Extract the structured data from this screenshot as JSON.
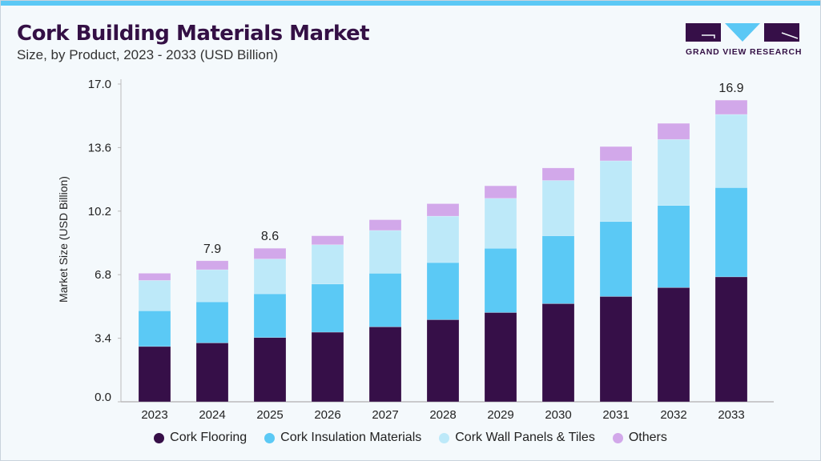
{
  "header": {
    "title": "Cork Building Materials Market",
    "subtitle": "Size, by Product, 2023 - 2033 (USD Billion)",
    "logo_text": "GRAND VIEW RESEARCH"
  },
  "chart_data": {
    "type": "bar",
    "stacked": true,
    "title": "Cork Building Materials Market",
    "xlabel": "",
    "ylabel": "Market Size (USD Billion)",
    "ylim": [
      0,
      17
    ],
    "yticks": [
      0.0,
      3.4,
      6.8,
      10.2,
      13.6,
      17.0
    ],
    "categories": [
      "2023",
      "2024",
      "2025",
      "2026",
      "2027",
      "2028",
      "2029",
      "2030",
      "2031",
      "2032",
      "2033"
    ],
    "series": [
      {
        "name": "Cork Flooring",
        "color": "#360f48",
        "values": [
          3.1,
          3.3,
          3.6,
          3.9,
          4.2,
          4.6,
          5.0,
          5.5,
          5.9,
          6.4,
          7.0
        ]
      },
      {
        "name": "Cork Insulation Materials",
        "color": "#5bc9f5",
        "values": [
          2.0,
          2.3,
          2.45,
          2.7,
          3.0,
          3.2,
          3.6,
          3.8,
          4.2,
          4.6,
          5.0
        ]
      },
      {
        "name": "Cork Wall Panels & Tiles",
        "color": "#bde9f9",
        "values": [
          1.7,
          1.8,
          1.95,
          2.2,
          2.4,
          2.6,
          2.8,
          3.1,
          3.4,
          3.7,
          4.1
        ]
      },
      {
        "name": "Others",
        "color": "#d2a8ea",
        "values": [
          0.4,
          0.5,
          0.6,
          0.5,
          0.6,
          0.7,
          0.7,
          0.7,
          0.8,
          0.9,
          0.8
        ]
      }
    ],
    "data_labels": {
      "2024": "7.9",
      "2025": "8.6",
      "2033": "16.9"
    },
    "legend_position": "bottom",
    "grid": false
  }
}
